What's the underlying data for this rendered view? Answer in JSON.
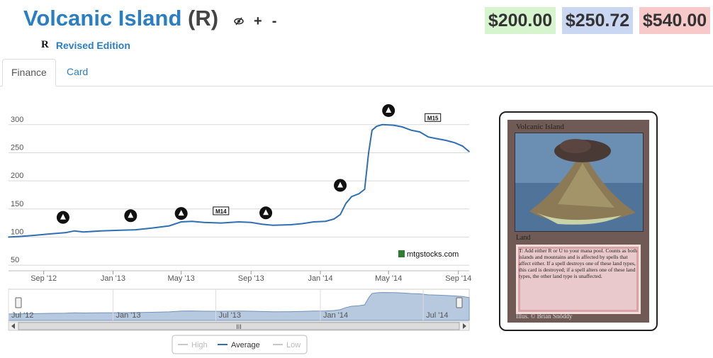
{
  "card": {
    "name": "Volcanic Island",
    "rarity": "(R)",
    "set_symbol": "R",
    "set_name": "Revised Edition",
    "type_line": "Land",
    "rules_text": "T: Add either R or U to your mana pool. Counts as both islands and mountains and is affected by spells that affect either. If a spell destroys one of these land types, this card is destroyed; if a spell alters one of these land types, the other land type is unaffected.",
    "illustrator": "Illus. © Brian Snõddy"
  },
  "toolbar": {
    "foil_icon": "eye-slash-icon",
    "add_label": "+",
    "remove_label": "-"
  },
  "prices": [
    {
      "label": "$200.00",
      "bg": "#d6f5cf"
    },
    {
      "label": "$250.72",
      "bg": "#c9d7f2"
    },
    {
      "label": "$540.00",
      "bg": "#f7c9c9"
    }
  ],
  "tabs": [
    {
      "label": "Finance",
      "active": true
    },
    {
      "label": "Card",
      "active": false
    }
  ],
  "chart_data": {
    "type": "line",
    "title": "",
    "x_start": "2012-07-01",
    "x_end": "2014-09-20",
    "ylim": [
      40,
      330
    ],
    "yticks": [
      50,
      100,
      150,
      200,
      250,
      300
    ],
    "xticks": [
      {
        "date": "2012-09-01",
        "label": "Sep '12"
      },
      {
        "date": "2013-01-01",
        "label": "Jan '13"
      },
      {
        "date": "2013-05-01",
        "label": "May '13"
      },
      {
        "date": "2013-09-01",
        "label": "Sep '13"
      },
      {
        "date": "2014-01-01",
        "label": "Jan '14"
      },
      {
        "date": "2014-05-01",
        "label": "May '14"
      },
      {
        "date": "2014-09-01",
        "label": "Sep '14"
      }
    ],
    "series": [
      {
        "name": "Average",
        "color": "#2f6fb3",
        "points": [
          [
            "2012-07-01",
            100
          ],
          [
            "2012-07-20",
            101
          ],
          [
            "2012-08-15",
            103
          ],
          [
            "2012-09-15",
            106
          ],
          [
            "2012-10-10",
            108
          ],
          [
            "2012-10-25",
            111
          ],
          [
            "2012-11-10",
            109
          ],
          [
            "2012-12-10",
            111
          ],
          [
            "2013-01-10",
            112
          ],
          [
            "2013-02-10",
            113
          ],
          [
            "2013-03-10",
            116
          ],
          [
            "2013-04-10",
            120
          ],
          [
            "2013-05-01",
            127
          ],
          [
            "2013-05-20",
            128
          ],
          [
            "2013-06-10",
            126
          ],
          [
            "2013-07-10",
            125
          ],
          [
            "2013-08-10",
            127
          ],
          [
            "2013-09-01",
            126
          ],
          [
            "2013-09-20",
            123
          ],
          [
            "2013-10-10",
            121
          ],
          [
            "2013-11-10",
            122
          ],
          [
            "2013-12-01",
            124
          ],
          [
            "2013-12-20",
            127
          ],
          [
            "2014-01-10",
            128
          ],
          [
            "2014-01-25",
            132
          ],
          [
            "2014-02-05",
            140
          ],
          [
            "2014-02-15",
            160
          ],
          [
            "2014-02-25",
            172
          ],
          [
            "2014-03-10",
            177
          ],
          [
            "2014-03-20",
            185
          ],
          [
            "2014-03-27",
            250
          ],
          [
            "2014-04-02",
            290
          ],
          [
            "2014-04-10",
            297
          ],
          [
            "2014-04-20",
            300
          ],
          [
            "2014-05-10",
            299
          ],
          [
            "2014-05-25",
            296
          ],
          [
            "2014-06-10",
            290
          ],
          [
            "2014-06-25",
            287
          ],
          [
            "2014-07-10",
            278
          ],
          [
            "2014-07-25",
            275
          ],
          [
            "2014-08-10",
            272
          ],
          [
            "2014-08-25",
            268
          ],
          [
            "2014-09-08",
            262
          ],
          [
            "2014-09-20",
            252
          ]
        ]
      }
    ],
    "set_markers": [
      {
        "date": "2012-10-05",
        "value": 135,
        "icon": "return-to-ravnica-set-icon"
      },
      {
        "date": "2013-02-01",
        "value": 138,
        "icon": "gatecrash-set-icon"
      },
      {
        "date": "2013-05-01",
        "value": 142,
        "icon": "dragons-maze-set-icon"
      },
      {
        "date": "2013-07-10",
        "value": 146,
        "icon": "m14-set-icon",
        "label": "M14"
      },
      {
        "date": "2013-09-27",
        "value": 143,
        "icon": "theros-set-icon"
      },
      {
        "date": "2014-02-05",
        "value": 192,
        "icon": "born-of-the-gods-set-icon"
      },
      {
        "date": "2014-05-01",
        "value": 325,
        "icon": "journey-into-nyx-set-icon"
      },
      {
        "date": "2014-07-18",
        "value": 312,
        "icon": "m15-set-icon",
        "label": "M15"
      }
    ],
    "navigator_ticks": [
      {
        "date": "2012-07-01",
        "label": "Jul '12"
      },
      {
        "date": "2013-01-01",
        "label": "Jan '13"
      },
      {
        "date": "2013-07-01",
        "label": "Jul '13"
      },
      {
        "date": "2014-01-01",
        "label": "Jan '14"
      },
      {
        "date": "2014-07-01",
        "label": "Jul '14"
      }
    ],
    "legend": {
      "items": [
        "High",
        "Average",
        "Low"
      ],
      "placement": "bottom",
      "active": "Average"
    },
    "credit": "mtgstocks.com",
    "scroll_label": "III"
  }
}
